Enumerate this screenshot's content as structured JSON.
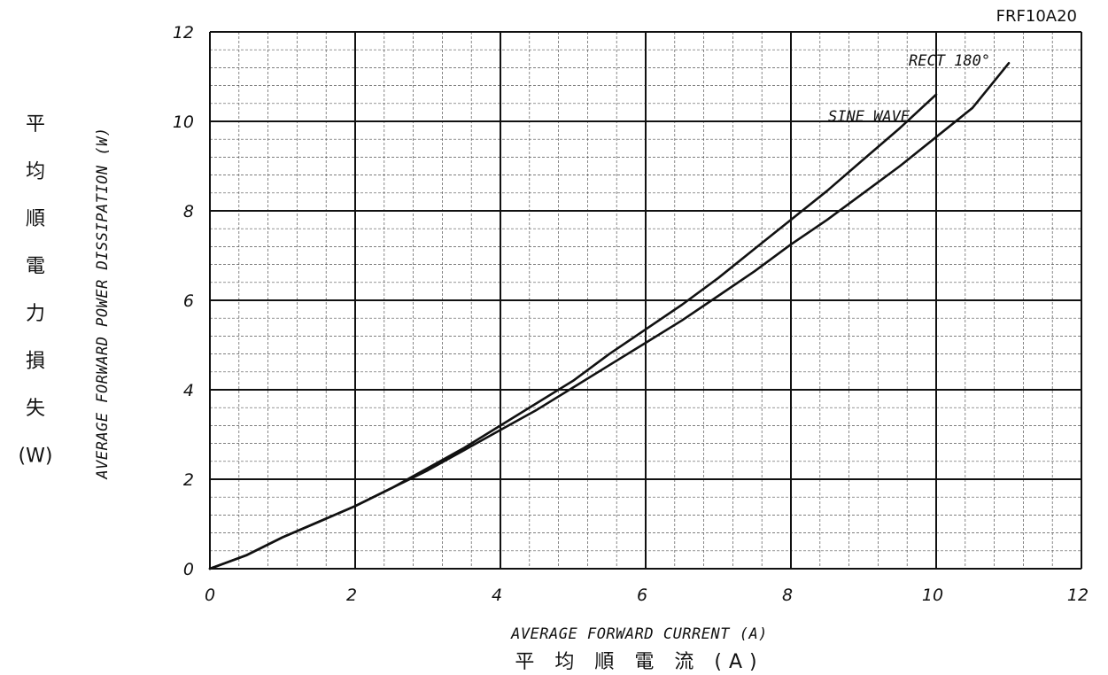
{
  "part_number": "FRF10A20",
  "y_axis_title_en": "AVERAGE FORWARD POWER DISSIPATION (W)",
  "y_axis_title_jp": [
    "平",
    "均",
    "順",
    "電",
    "力",
    "損",
    "失",
    "(W)"
  ],
  "x_axis_title_en": "AVERAGE FORWARD CURRENT (A)",
  "x_axis_title_jp": "平 均 順 電 流 (A)",
  "chart_data": {
    "type": "line",
    "title": "FRF10A20",
    "xlabel": "AVERAGE FORWARD CURRENT (A)",
    "ylabel": "AVERAGE FORWARD POWER DISSIPATION (W)",
    "xlim": [
      0,
      12
    ],
    "ylim": [
      0,
      12
    ],
    "x_major_ticks": [
      0,
      2,
      4,
      6,
      8,
      10,
      12
    ],
    "y_major_ticks": [
      0,
      2,
      4,
      6,
      8,
      10,
      12
    ],
    "x_minor_step": 0.4,
    "y_minor_step": 0.4,
    "grid": true,
    "series": [
      {
        "name": "SINE WAVE",
        "x": [
          0,
          0.5,
          1,
          1.5,
          2,
          2.5,
          3,
          3.5,
          4,
          4.5,
          5,
          5.5,
          6,
          6.5,
          7,
          7.5,
          8,
          8.5,
          9,
          9.5,
          10
        ],
        "y": [
          0,
          0.3,
          0.7,
          1.05,
          1.4,
          1.8,
          2.25,
          2.7,
          3.2,
          3.7,
          4.2,
          4.8,
          5.35,
          5.9,
          6.5,
          7.15,
          7.8,
          8.45,
          9.15,
          9.85,
          10.6
        ]
      },
      {
        "name": "RECT 180°",
        "x": [
          0,
          0.5,
          1,
          1.5,
          2,
          2.5,
          3,
          3.5,
          4,
          4.5,
          5,
          5.5,
          6,
          6.5,
          7,
          7.5,
          8,
          8.5,
          9,
          9.5,
          10,
          10.5,
          11
        ],
        "y": [
          0,
          0.3,
          0.7,
          1.05,
          1.4,
          1.8,
          2.2,
          2.65,
          3.1,
          3.55,
          4.05,
          4.55,
          5.05,
          5.55,
          6.1,
          6.65,
          7.25,
          7.8,
          8.4,
          9.0,
          9.65,
          10.3,
          11.3
        ]
      }
    ]
  }
}
